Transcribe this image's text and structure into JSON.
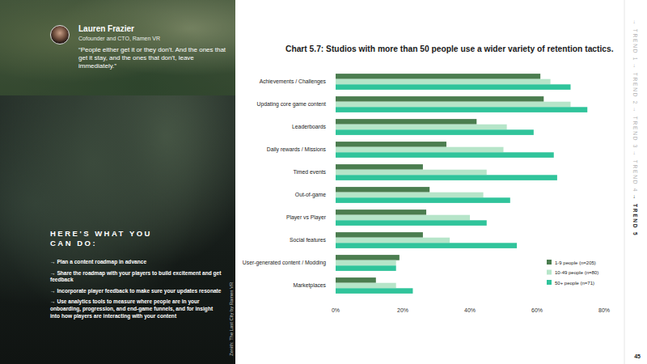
{
  "chart_data": {
    "type": "bar",
    "orientation": "horizontal",
    "title": "Chart 5.7: Studios with more than 50 people use a wider variety of retention tactics.",
    "categories": [
      "Achievements / Challenges",
      "Updating core game content",
      "Leaderboards",
      "Daily rewards / Missions",
      "Timed events",
      "Out-of-game",
      "Player vs Player",
      "Social features",
      "User-generated content / Modding",
      "Marketplaces"
    ],
    "series": [
      {
        "name": "1-9 people (n=205)",
        "color": "#4b7d4f",
        "values": [
          61,
          62,
          42,
          33,
          26,
          28,
          27,
          26,
          19,
          12
        ]
      },
      {
        "name": "10-49 people (n=80)",
        "color": "#b6e5c9",
        "values": [
          64,
          70,
          51,
          50,
          45,
          44,
          40,
          34,
          18,
          18
        ]
      },
      {
        "name": "50+ people (n=71)",
        "color": "#30c49b",
        "values": [
          70,
          75,
          59,
          65,
          66,
          52,
          45,
          54,
          18,
          23
        ]
      }
    ],
    "xlim": [
      0,
      80
    ],
    "xticks": [
      {
        "value": 0,
        "label": "0%"
      },
      {
        "value": 20,
        "label": "20%"
      },
      {
        "value": 40,
        "label": "40%"
      },
      {
        "value": 60,
        "label": "60%"
      },
      {
        "value": 80,
        "label": "80%"
      }
    ],
    "grid": false,
    "legend": "lower right"
  },
  "page": {
    "speaker": {
      "name": "Lauren Frazier",
      "role": "Cofounder and CTO, Ramen VR",
      "quote": "“People either get it or they don't. And the ones that get it stay, and the ones that don't, leave immediately.”"
    },
    "tips": {
      "heading": "HERE'S WHAT YOU CAN DO:",
      "items": [
        "→ Plan a content roadmap in advance",
        "→ Share the roadmap with your players to build excitement and get feedback",
        "→ Incorporate player feedback to make sure your updates resonate",
        "→ Use analytics tools to measure where people are in your onboarding, progression, and end-game funnels, and for insight into how players are interacting with your content"
      ]
    },
    "image_credit": "Zenith: The Last City by Ramen VR",
    "nav": [
      "→ TREND 1",
      "→ TREND 2",
      "→ TREND 3",
      "→ TREND 4",
      "→ TREND 5"
    ],
    "page_number": 45
  }
}
